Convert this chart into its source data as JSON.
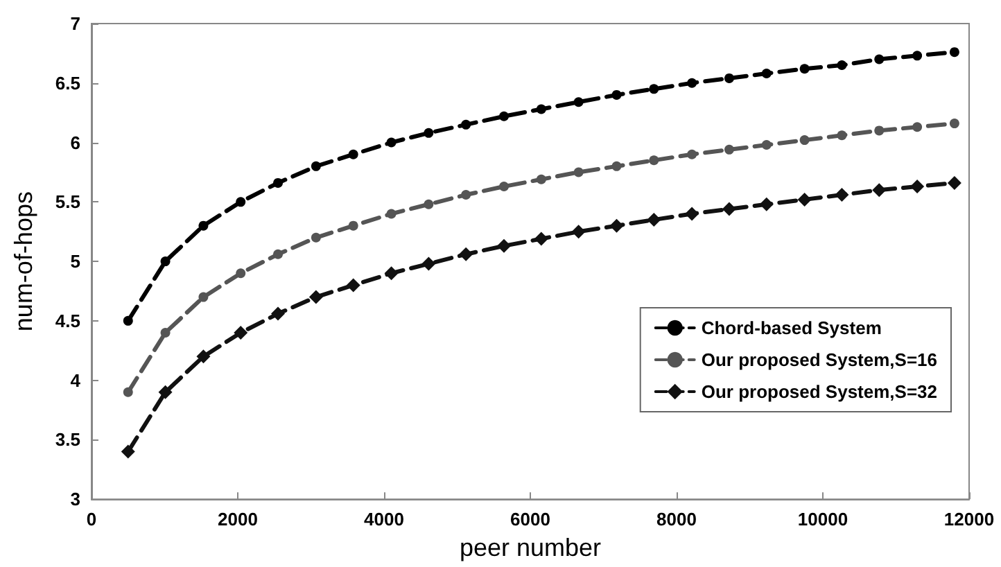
{
  "chart_data": {
    "type": "line",
    "xlabel": "peer number",
    "ylabel": "num-of-hops",
    "x": [
      500,
      1010,
      1530,
      2040,
      2550,
      3070,
      3580,
      4100,
      4610,
      5120,
      5640,
      6150,
      6660,
      7180,
      7690,
      8210,
      8720,
      9230,
      9750,
      10260,
      10770,
      11290,
      11800
    ],
    "series": [
      {
        "name": "Chord-based System",
        "color": "#000000",
        "marker": "circle",
        "values": [
          4.5,
          5.0,
          5.3,
          5.5,
          5.66,
          5.8,
          5.9,
          6.0,
          6.08,
          6.15,
          6.22,
          6.28,
          6.34,
          6.4,
          6.45,
          6.5,
          6.54,
          6.58,
          6.62,
          6.65,
          6.7,
          6.73,
          6.76
        ]
      },
      {
        "name": "Our proposed System,S=16",
        "color": "#555555",
        "marker": "circle",
        "values": [
          3.9,
          4.4,
          4.7,
          4.9,
          5.06,
          5.2,
          5.3,
          5.4,
          5.48,
          5.56,
          5.63,
          5.69,
          5.75,
          5.8,
          5.85,
          5.9,
          5.94,
          5.98,
          6.02,
          6.06,
          6.1,
          6.13,
          6.16
        ]
      },
      {
        "name": "Our proposed System,S=32",
        "color": "#111111",
        "marker": "diamond",
        "values": [
          3.4,
          3.9,
          4.2,
          4.4,
          4.56,
          4.7,
          4.8,
          4.9,
          4.98,
          5.06,
          5.13,
          5.19,
          5.25,
          5.3,
          5.35,
          5.4,
          5.44,
          5.48,
          5.52,
          5.56,
          5.6,
          5.63,
          5.66
        ]
      }
    ],
    "xlim": [
      0,
      12000
    ],
    "xticks": [
      0,
      2000,
      4000,
      6000,
      8000,
      10000,
      12000
    ],
    "ylim": [
      3,
      7
    ],
    "yticks": [
      3,
      3.5,
      4,
      4.5,
      5,
      5.5,
      6,
      6.5,
      7
    ],
    "legend": "right",
    "line_style": "dashed",
    "grid": false
  }
}
